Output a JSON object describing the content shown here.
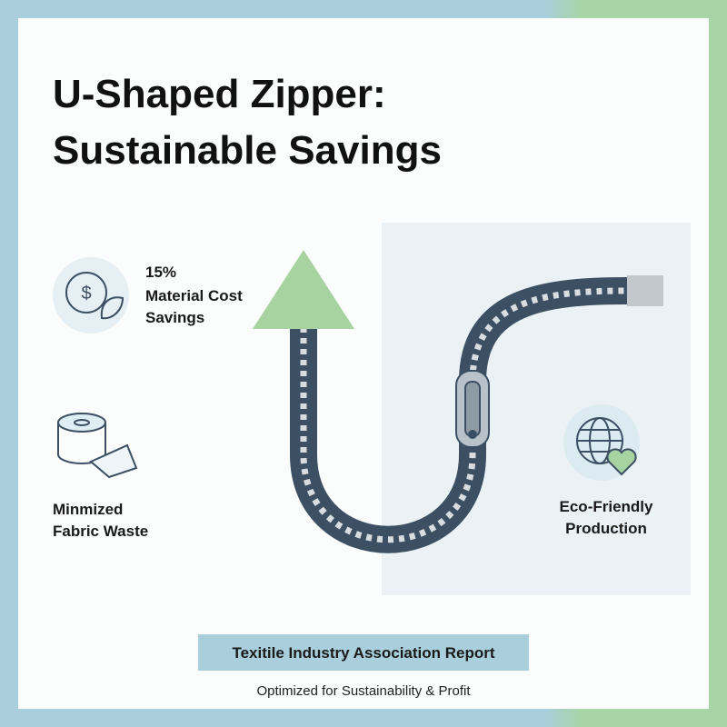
{
  "title": {
    "lines": [
      "U-Shaped Zipper:",
      "Sustainable Savings"
    ]
  },
  "features": [
    {
      "lines": [
        "15%",
        "Material Cost",
        "Savings"
      ]
    },
    {
      "lines": [
        "Minmized",
        "Fabric Waste"
      ]
    },
    {
      "lines": [
        "Eco-Friendly",
        "Production"
      ]
    }
  ],
  "footer": {
    "banner": "Texitile Industry Association Report",
    "subtitle": "Optimized for Sustainability & Profit"
  }
}
